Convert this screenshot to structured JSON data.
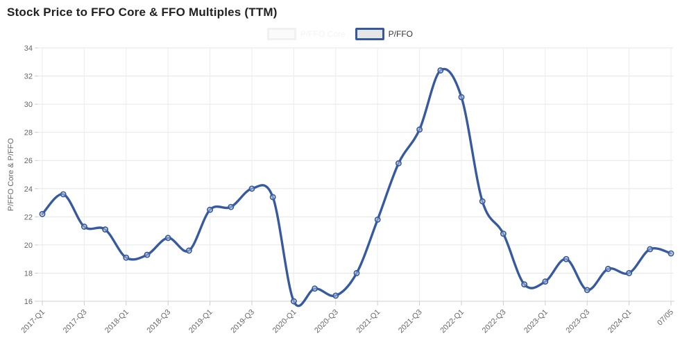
{
  "title": "Stock Price to FFO Core & FFO Multiples (TTM)",
  "legend": {
    "hidden_item": {
      "label": "P/FFO Core"
    },
    "items": [
      {
        "label": "P/FFO"
      }
    ]
  },
  "colors": {
    "line": "#36599f",
    "marker_fill": "#ffffff",
    "grid": "#e6e6e6",
    "axis": "#cfcfcf",
    "tick_text": "#666666",
    "title_text": "#212121",
    "legend_swatch_fill": "#e6e6e6"
  },
  "chart_data": {
    "type": "line",
    "title": "Stock Price to FFO Core & FFO Multiples (TTM)",
    "xlabel": "",
    "ylabel": "P/FFO Core & P/FFO",
    "ylim": [
      16,
      34
    ],
    "yticks": [
      16,
      18,
      20,
      22,
      24,
      26,
      28,
      30,
      32,
      34
    ],
    "grid": true,
    "smooth": true,
    "legend_position": "top",
    "categories": [
      "2017-Q1",
      "2017-Q2",
      "2017-Q3",
      "2017-Q4",
      "2018-Q1",
      "2018-Q2",
      "2018-Q3",
      "2018-Q4",
      "2019-Q1",
      "2019-Q2",
      "2019-Q3",
      "2019-Q4",
      "2020-Q1",
      "2020-Q2",
      "2020-Q3",
      "2020-Q4",
      "2021-Q1",
      "2021-Q2",
      "2021-Q3",
      "2021-Q4",
      "2022-Q1",
      "2022-Q2",
      "2022-Q3",
      "2022-Q4",
      "2023-Q1",
      "2023-Q2",
      "2023-Q3",
      "2023-Q4",
      "2024-Q1",
      "2024-Q2",
      "07/05"
    ],
    "x_tick_indices": [
      0,
      2,
      4,
      6,
      8,
      10,
      12,
      14,
      16,
      18,
      20,
      22,
      24,
      26,
      28,
      30
    ],
    "x_tick_labels": [
      "2017-Q1",
      "2017-Q3",
      "2018-Q1",
      "2018-Q3",
      "2019-Q1",
      "2019-Q3",
      "2020-Q1",
      "2020-Q3",
      "2021-Q1",
      "2021-Q3",
      "2022-Q1",
      "2022-Q3",
      "2023-Q1",
      "2023-Q3",
      "2024-Q1",
      "07/05"
    ],
    "series": [
      {
        "name": "P/FFO",
        "values": [
          22.2,
          23.6,
          21.3,
          21.1,
          19.1,
          19.3,
          20.5,
          19.6,
          22.5,
          22.7,
          24.0,
          23.4,
          16.0,
          16.9,
          16.4,
          18.0,
          21.8,
          25.8,
          28.2,
          32.4,
          30.5,
          23.1,
          20.8,
          17.2,
          17.4,
          19.0,
          16.8,
          18.3,
          18.0,
          19.7,
          19.4
        ]
      }
    ]
  }
}
